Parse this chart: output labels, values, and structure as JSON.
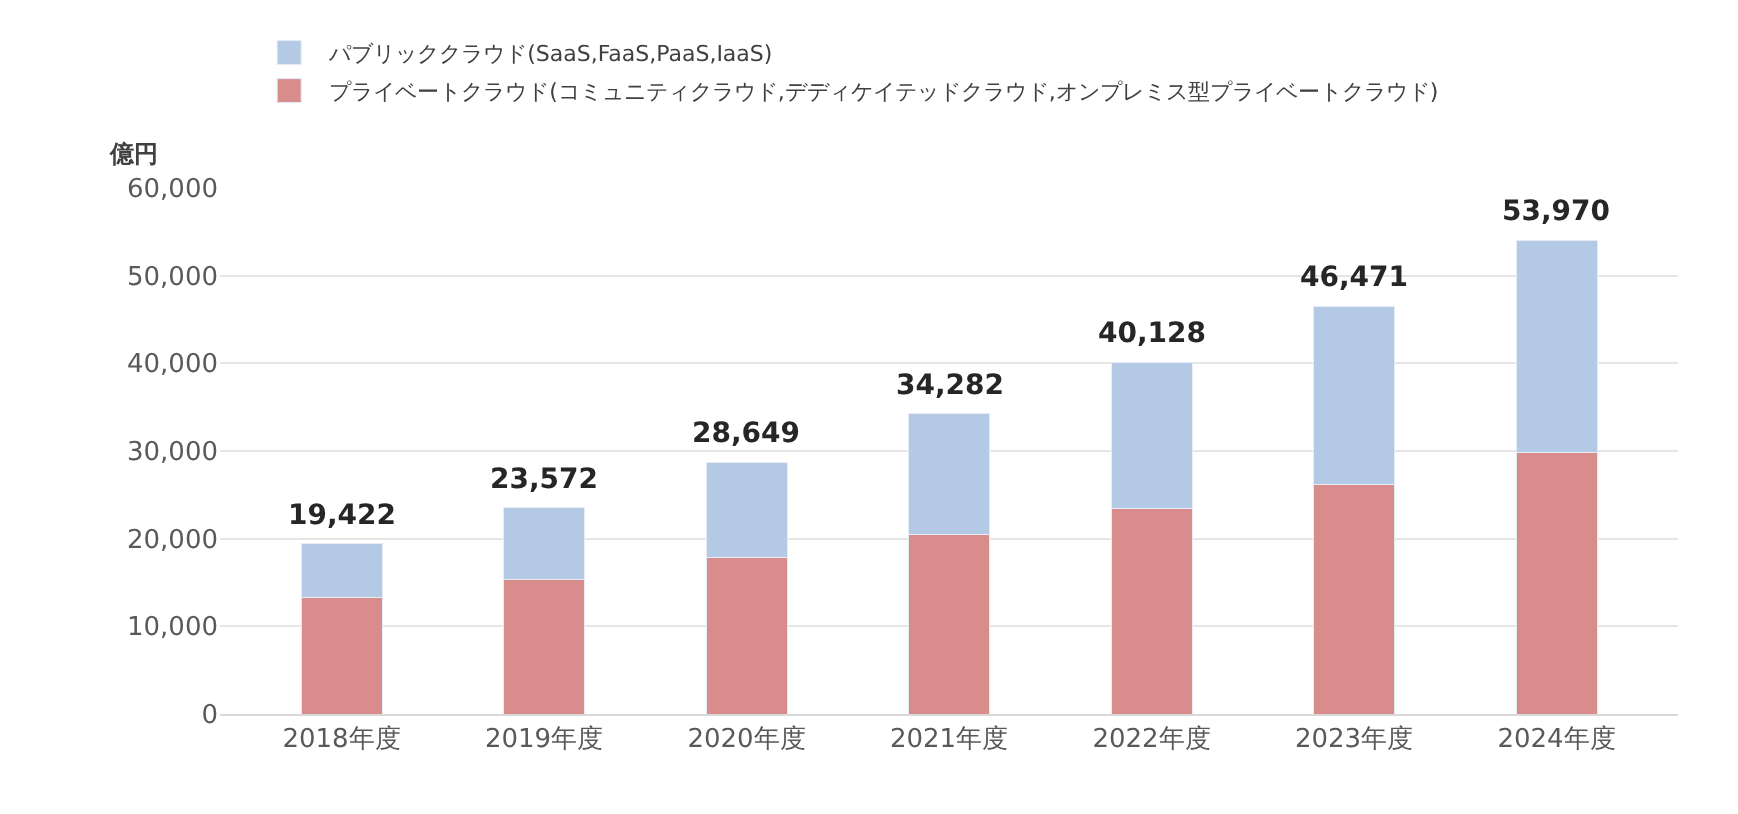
{
  "chart_data": {
    "type": "bar",
    "stacked": true,
    "ylabel": "億円",
    "categories": [
      "2018年度",
      "2019年度",
      "2020年度",
      "2021年度",
      "2022年度",
      "2023年度",
      "2024年度"
    ],
    "series": [
      {
        "name": "プライベートクラウド(コミュニティクラウド,デディケイテッドクラウド,オンプレミス型プライベートクラウド)",
        "color": "#d98c8c",
        "values": [
          13300,
          15300,
          17900,
          20500,
          23400,
          26200,
          29800
        ]
      },
      {
        "name": "パブリッククラウド(SaaS,FaaS,PaaS,IaaS)",
        "color": "#b4c9e4",
        "values": [
          6122,
          8272,
          10749,
          13782,
          16728,
          20271,
          24170
        ]
      }
    ],
    "totals": [
      "19,422",
      "23,572",
      "28,649",
      "34,282",
      "40,128",
      "46,471",
      "53,970"
    ],
    "ylim": [
      0,
      60000
    ],
    "yticks": [
      {
        "value": 0,
        "label": "0"
      },
      {
        "value": 10000,
        "label": "10,000"
      },
      {
        "value": 20000,
        "label": "20,000"
      },
      {
        "value": 30000,
        "label": "30,000"
      },
      {
        "value": 40000,
        "label": "40,000"
      },
      {
        "value": 50000,
        "label": "50,000"
      },
      {
        "value": 60000,
        "label": "60,000"
      }
    ],
    "grid": "y",
    "legend": "top left"
  }
}
